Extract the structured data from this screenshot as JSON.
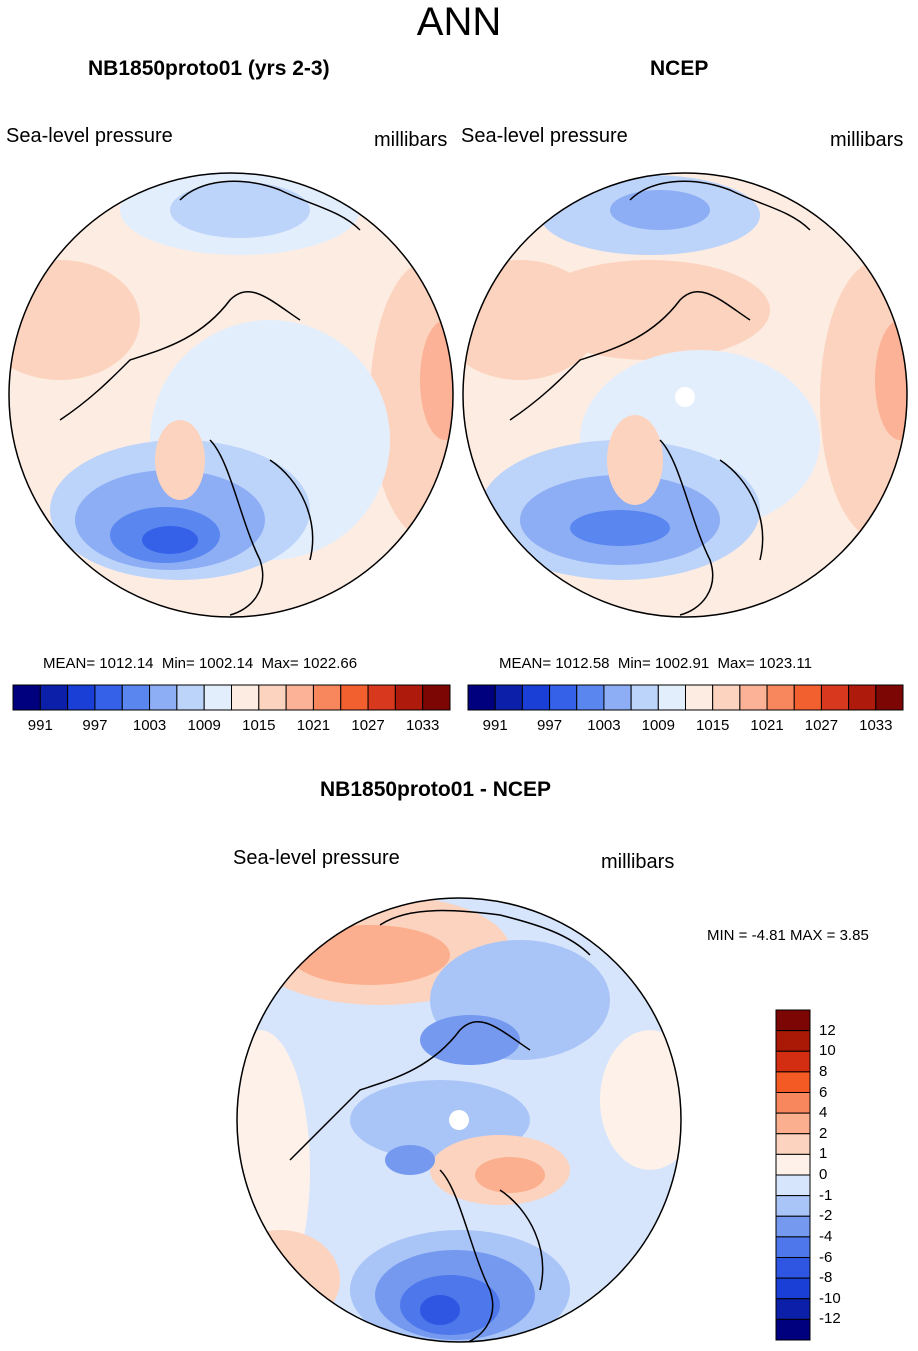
{
  "page_title": "ANN",
  "colors": {
    "abs_scale": [
      "#00007f",
      "#0b1fa8",
      "#1a3fd6",
      "#3461e8",
      "#5a86f0",
      "#8daef5",
      "#bcd3fa",
      "#e3eefd",
      "#fdece2",
      "#fcd3be",
      "#fbb296",
      "#f8875d",
      "#f3602f",
      "#d8381d",
      "#ae1a0b",
      "#7c0604"
    ],
    "diff_scale": [
      "#00007f",
      "#0b1fa8",
      "#1a3fd6",
      "#2f56e3",
      "#4d77eb",
      "#7499ef",
      "#a9c4f7",
      "#d6e5fc",
      "#fdf1ea",
      "#fcd3be",
      "#fbaf8e",
      "#f8875d",
      "#f35a24",
      "#d42e12",
      "#aa1905",
      "#7c0604"
    ],
    "coast": "#000000"
  },
  "panels": [
    {
      "title": "NB1850proto01 (yrs 2-3)",
      "variable": "Sea-level pressure",
      "units": "millibars",
      "stats": {
        "mean_label": "MEAN=",
        "mean": "1012.14",
        "min_label": "Min=",
        "min": "1002.14",
        "max_label": "Max=",
        "max": "1022.66"
      },
      "colorbar_ticks": [
        "991",
        "997",
        "1003",
        "1009",
        "1015",
        "1021",
        "1027",
        "1033"
      ]
    },
    {
      "title": "NCEP",
      "variable": "Sea-level pressure",
      "units": "millibars",
      "stats": {
        "mean_label": "MEAN=",
        "mean": "1012.58",
        "min_label": "Min=",
        "min": "1002.91",
        "max_label": "Max=",
        "max": "1023.11"
      },
      "colorbar_ticks": [
        "991",
        "997",
        "1003",
        "1009",
        "1015",
        "1021",
        "1027",
        "1033"
      ]
    }
  ],
  "diff_panel": {
    "title": "NB1850proto01 - NCEP",
    "variable": "Sea-level pressure",
    "units": "millibars",
    "min_label": "MIN =",
    "min": "-4.81",
    "max_label": "MAX =",
    "max": "3.85",
    "colorbar_ticks": [
      "12",
      "10",
      "8",
      "6",
      "4",
      "2",
      "1",
      "0",
      "-1",
      "-2",
      "-4",
      "-6",
      "-8",
      "-10",
      "-12"
    ]
  }
}
